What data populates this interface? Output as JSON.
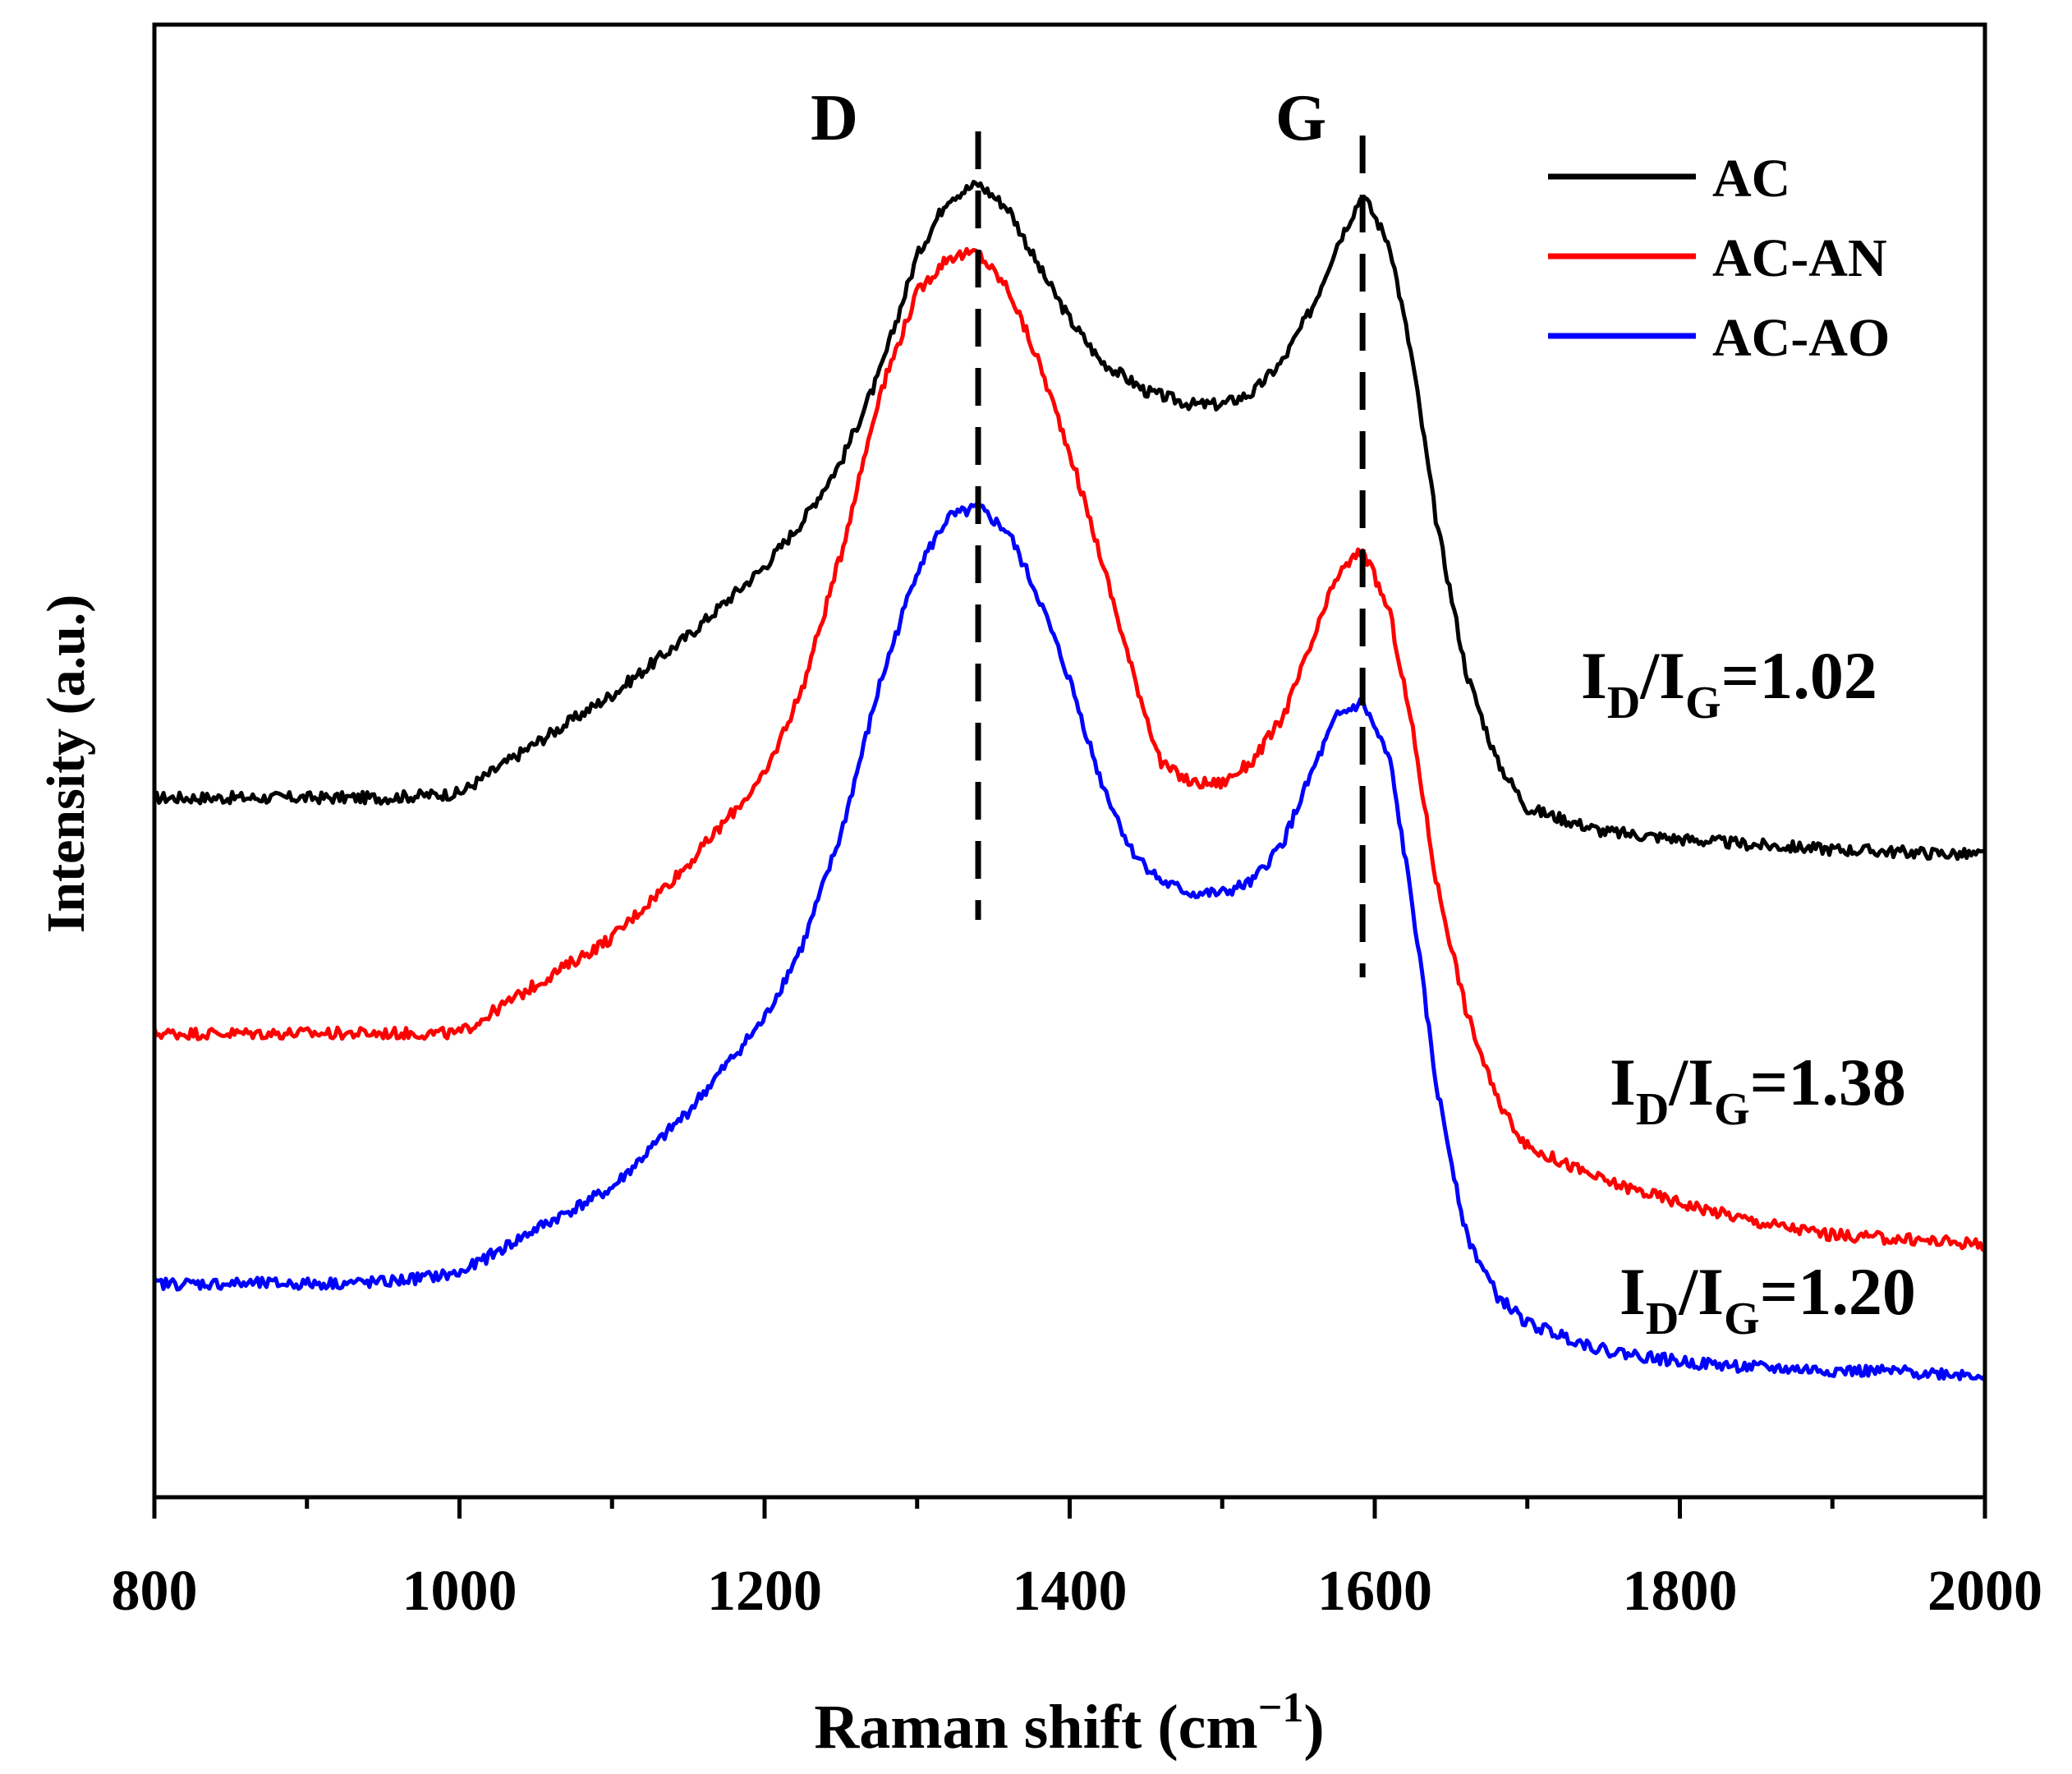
{
  "chart_data": {
    "type": "line",
    "title": "",
    "xlabel": "Raman shift (cm",
    "xlabel_sup": "−1",
    "xlabel_close": ")",
    "ylabel": "Intensity (a.u.)",
    "xlim": [
      800,
      2000
    ],
    "ylim": [
      0,
      1
    ],
    "x_ticks": [
      "800",
      "1000",
      "1200",
      "1400",
      "1600",
      "1800",
      "2000"
    ],
    "x_tick_values": [
      800,
      1000,
      1200,
      1400,
      1600,
      1800,
      2000
    ],
    "legend_position": "top-right",
    "peak_markers": [
      {
        "label": "D",
        "x": 1340
      },
      {
        "label": "G",
        "x": 1592
      }
    ],
    "series": [
      {
        "name": "AC",
        "color": "#000000",
        "ratio_prefix": "I",
        "ratio_sub1": "D",
        "ratio_slash": "/I",
        "ratio_sub2": "G",
        "ratio_value": "=1.02",
        "x": [
          800,
          850,
          900,
          950,
          1000,
          1050,
          1100,
          1150,
          1200,
          1225,
          1250,
          1275,
          1300,
          1320,
          1340,
          1360,
          1380,
          1400,
          1420,
          1450,
          1480,
          1500,
          1520,
          1540,
          1560,
          1575,
          1592,
          1610,
          1625,
          1640,
          1660,
          1680,
          1700,
          1750,
          1800,
          1850,
          1900,
          1950,
          2000
        ],
        "y": [
          0.475,
          0.475,
          0.475,
          0.475,
          0.478,
          0.512,
          0.545,
          0.585,
          0.632,
          0.663,
          0.703,
          0.762,
          0.843,
          0.882,
          0.892,
          0.875,
          0.835,
          0.8,
          0.772,
          0.751,
          0.742,
          0.742,
          0.75,
          0.772,
          0.81,
          0.85,
          0.885,
          0.85,
          0.77,
          0.665,
          0.56,
          0.5,
          0.468,
          0.452,
          0.447,
          0.443,
          0.44,
          0.438,
          0.436
        ]
      },
      {
        "name": "AC-AN",
        "color": "#ff0000",
        "ratio_prefix": "I",
        "ratio_sub1": "D",
        "ratio_slash": "/I",
        "ratio_sub2": "G",
        "ratio_value": "=1.38",
        "x": [
          800,
          850,
          900,
          950,
          1000,
          1050,
          1100,
          1150,
          1200,
          1225,
          1250,
          1275,
          1300,
          1320,
          1340,
          1360,
          1380,
          1400,
          1420,
          1440,
          1460,
          1480,
          1500,
          1520,
          1540,
          1560,
          1575,
          1592,
          1610,
          1625,
          1640,
          1660,
          1680,
          1700,
          1750,
          1800,
          1850,
          1900,
          1950,
          2000
        ],
        "y": [
          0.315,
          0.315,
          0.315,
          0.315,
          0.315,
          0.348,
          0.38,
          0.43,
          0.49,
          0.55,
          0.64,
          0.748,
          0.818,
          0.842,
          0.845,
          0.82,
          0.77,
          0.71,
          0.64,
          0.565,
          0.498,
          0.485,
          0.485,
          0.5,
          0.53,
          0.583,
          0.625,
          0.644,
          0.6,
          0.52,
          0.42,
          0.33,
          0.27,
          0.238,
          0.215,
          0.2,
          0.187,
          0.178,
          0.175,
          0.172
        ]
      },
      {
        "name": "AC-AO",
        "color": "#0000ff",
        "ratio_prefix": "I",
        "ratio_sub1": "D",
        "ratio_slash": "/I",
        "ratio_sub2": "G",
        "ratio_value": "=1.20",
        "x": [
          800,
          850,
          900,
          950,
          1000,
          1050,
          1100,
          1150,
          1200,
          1225,
          1250,
          1275,
          1300,
          1320,
          1340,
          1360,
          1380,
          1400,
          1420,
          1440,
          1460,
          1480,
          1500,
          1520,
          1540,
          1560,
          1575,
          1592,
          1610,
          1625,
          1640,
          1660,
          1680,
          1700,
          1750,
          1800,
          1850,
          1900,
          1950,
          2000
        ],
        "y": [
          0.145,
          0.145,
          0.145,
          0.146,
          0.152,
          0.182,
          0.21,
          0.262,
          0.325,
          0.375,
          0.45,
          0.55,
          0.63,
          0.665,
          0.672,
          0.655,
          0.61,
          0.555,
          0.488,
          0.44,
          0.418,
          0.41,
          0.41,
          0.418,
          0.445,
          0.495,
          0.53,
          0.54,
          0.5,
          0.4,
          0.282,
          0.178,
          0.137,
          0.118,
          0.1,
          0.092,
          0.088,
          0.086,
          0.085,
          0.083
        ]
      }
    ]
  }
}
